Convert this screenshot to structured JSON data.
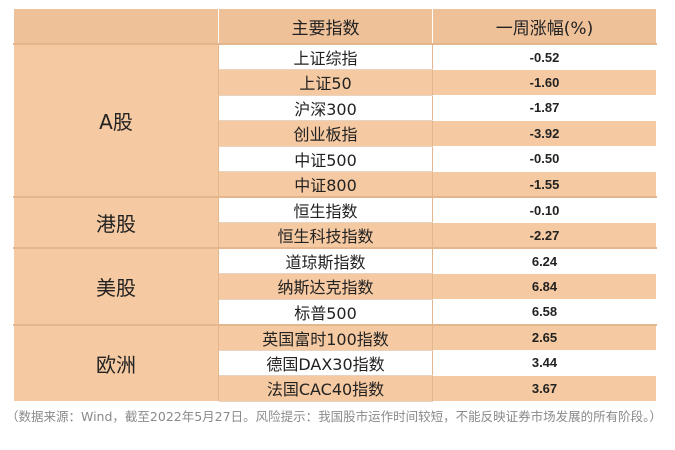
{
  "header": {
    "col1": "",
    "col2": "主要指数",
    "col3": "一周涨幅(%)"
  },
  "groups": [
    {
      "region": "A股",
      "rows": [
        {
          "index": "上证综指",
          "change": "-0.52"
        },
        {
          "index": "上证50",
          "change": "-1.60"
        },
        {
          "index": "沪深300",
          "change": "-1.87"
        },
        {
          "index": "创业板指",
          "change": "-3.92"
        },
        {
          "index": "中证500",
          "change": "-0.50"
        },
        {
          "index": "中证800",
          "change": "-1.55"
        }
      ]
    },
    {
      "region": "港股",
      "rows": [
        {
          "index": "恒生指数",
          "change": "-0.10"
        },
        {
          "index": "恒生科技指数",
          "change": "-2.27"
        }
      ]
    },
    {
      "region": "美股",
      "rows": [
        {
          "index": "道琼斯指数",
          "change": "6.24"
        },
        {
          "index": "纳斯达克指数",
          "change": "6.84"
        },
        {
          "index": "标普500",
          "change": "6.58"
        }
      ]
    },
    {
      "region": "欧洲",
      "rows": [
        {
          "index": "英国富时100指数",
          "change": "2.65"
        },
        {
          "index": "德国DAX30指数",
          "change": "3.44"
        },
        {
          "index": "法国CAC40指数",
          "change": "3.67"
        }
      ]
    }
  ],
  "note": "（数据来源：Wind，截至2022年5月27日。风险提示：我国股市运作时间较短，不能反映证券市场发展的所有阶段。）",
  "colors": {
    "header_bg": "#efc199",
    "band_bg": "#f5c9a1",
    "plain_bg": "#ffffff"
  }
}
